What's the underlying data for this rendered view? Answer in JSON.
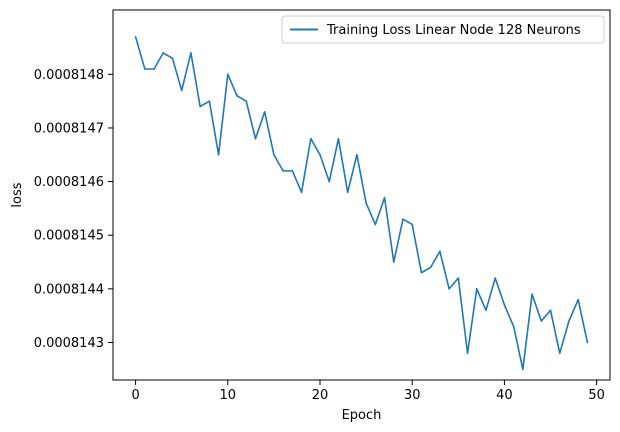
{
  "chart_data": {
    "type": "line",
    "xlabel": "Epoch",
    "ylabel": "loss",
    "xlim": [
      -2.45,
      51.45
    ],
    "ylim": [
      0.00081423,
      0.00081492
    ],
    "x_ticks": [
      0,
      10,
      20,
      30,
      40,
      50
    ],
    "y_ticks": [
      0.0008143,
      0.0008144,
      0.0008145,
      0.0008146,
      0.0008147,
      0.0008148
    ],
    "x_tick_labels": [
      "0",
      "10",
      "20",
      "30",
      "40",
      "50"
    ],
    "y_tick_labels": [
      "0.0008143",
      "0.0008144",
      "0.0008145",
      "0.0008146",
      "0.0008147",
      "0.0008148"
    ],
    "grid": false,
    "legend_position": "top-right",
    "series": [
      {
        "name": "Training Loss Linear Node 128 Neurons",
        "color": "#1f77b4",
        "x": [
          0,
          1,
          2,
          3,
          4,
          5,
          6,
          7,
          8,
          9,
          10,
          11,
          12,
          13,
          14,
          15,
          16,
          17,
          18,
          19,
          20,
          21,
          22,
          23,
          24,
          25,
          26,
          27,
          28,
          29,
          30,
          31,
          32,
          33,
          34,
          35,
          36,
          37,
          38,
          39,
          40,
          41,
          42,
          43,
          44,
          45,
          46,
          47,
          48,
          49
        ],
        "values": [
          0.00081487,
          0.00081481,
          0.00081481,
          0.00081484,
          0.00081483,
          0.00081477,
          0.00081484,
          0.00081474,
          0.00081475,
          0.00081465,
          0.0008148,
          0.00081476,
          0.00081475,
          0.00081468,
          0.00081473,
          0.00081465,
          0.00081462,
          0.00081462,
          0.00081458,
          0.00081468,
          0.00081465,
          0.0008146,
          0.00081468,
          0.00081458,
          0.00081465,
          0.00081456,
          0.00081452,
          0.00081457,
          0.00081445,
          0.00081453,
          0.00081452,
          0.00081443,
          0.00081444,
          0.00081447,
          0.0008144,
          0.00081442,
          0.00081428,
          0.0008144,
          0.00081436,
          0.00081442,
          0.00081437,
          0.00081433,
          0.00081425,
          0.00081439,
          0.00081434,
          0.00081436,
          0.00081428,
          0.00081434,
          0.00081438,
          0.0008143
        ]
      }
    ]
  }
}
